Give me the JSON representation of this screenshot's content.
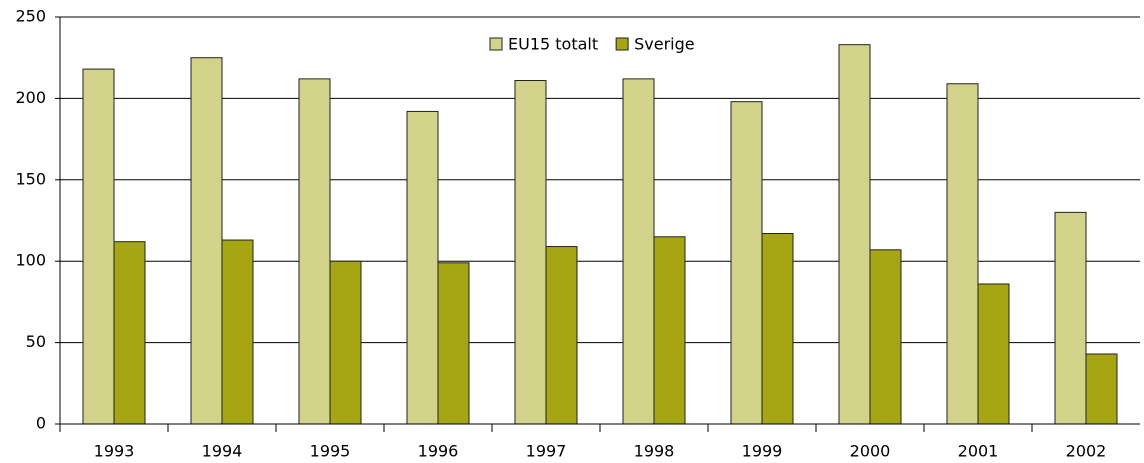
{
  "chart_data": {
    "type": "bar",
    "categories": [
      "1993",
      "1994",
      "1995",
      "1996",
      "1997",
      "1998",
      "1999",
      "2000",
      "2001",
      "2002"
    ],
    "series": [
      {
        "name": "EU15 totalt",
        "color": "#d2d28a",
        "values": [
          218,
          225,
          212,
          192,
          211,
          212,
          198,
          233,
          209,
          130
        ]
      },
      {
        "name": "Sverige",
        "color": "#a6a614",
        "values": [
          112,
          113,
          100,
          99,
          109,
          115,
          117,
          107,
          86,
          43
        ]
      }
    ],
    "ylim": [
      0,
      250
    ],
    "yticks": [
      0,
      50,
      100,
      150,
      200,
      250
    ],
    "grid": true,
    "legend": "top"
  }
}
